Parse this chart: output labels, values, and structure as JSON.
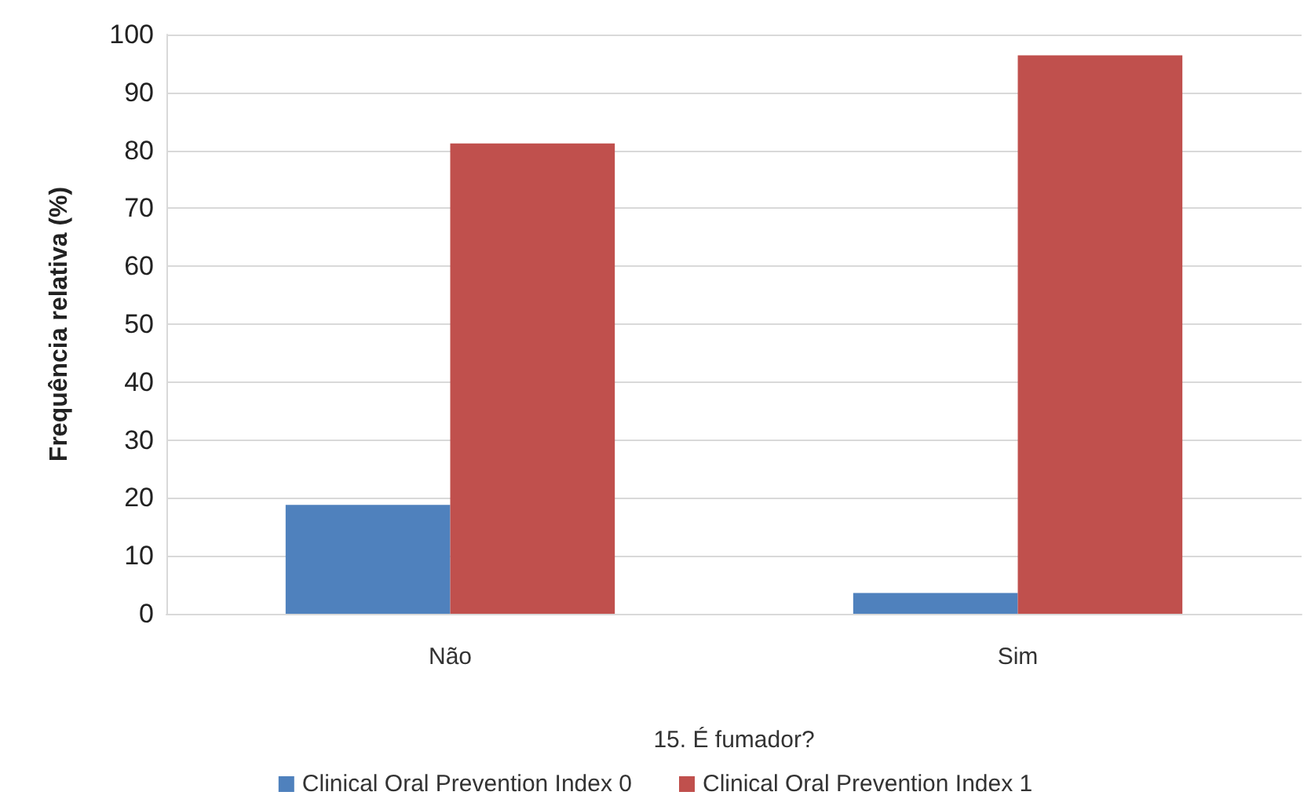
{
  "chart_data": {
    "type": "bar",
    "xlabel": "15. É fumador?",
    "ylabel": "Frequência relativa (%)",
    "categories": [
      "Não",
      "Sim"
    ],
    "series": [
      {
        "name": "Clinical Oral Prevention Index 0",
        "color": "#4f81bd",
        "values": [
          18.8,
          3.6
        ]
      },
      {
        "name": "Clinical Oral Prevention Index 1",
        "color": "#c0504d",
        "values": [
          81.2,
          96.4
        ]
      }
    ],
    "ylim": [
      0,
      100
    ],
    "yticks": [
      0,
      10,
      20,
      30,
      40,
      50,
      60,
      70,
      80,
      90,
      100
    ],
    "grid": "y",
    "legend": "bottom"
  }
}
